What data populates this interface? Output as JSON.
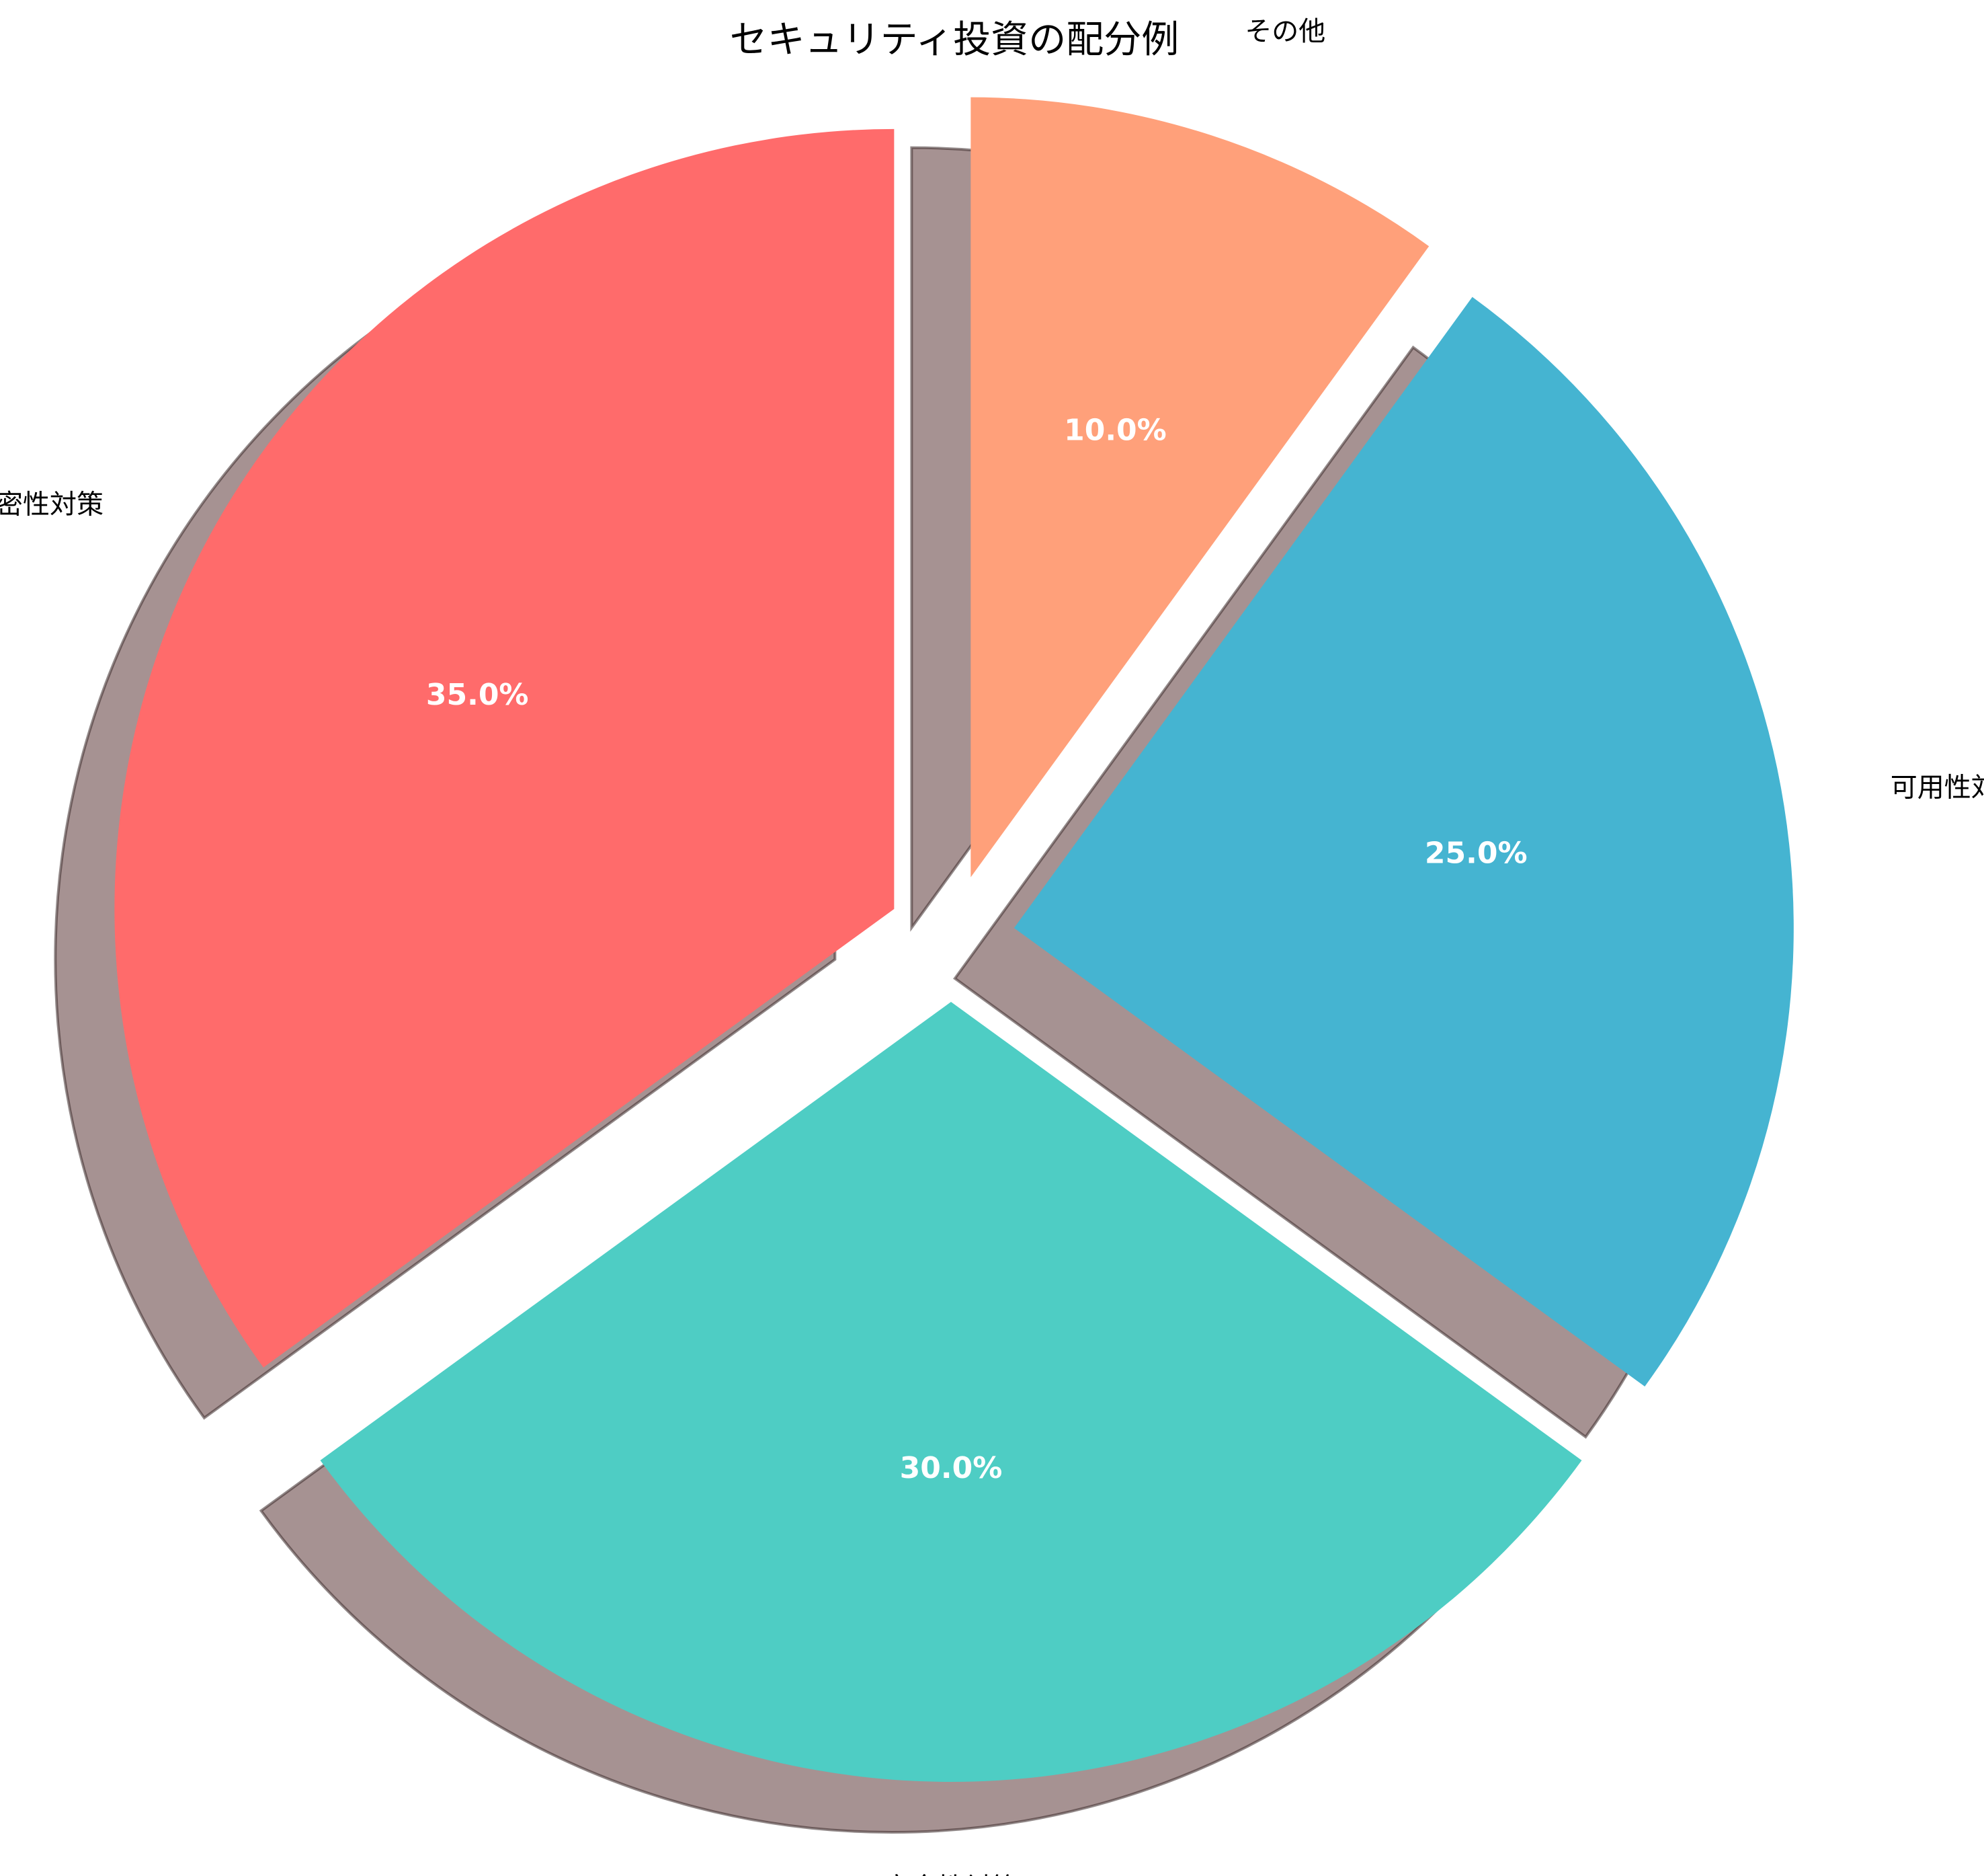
{
  "chart_data": {
    "type": "pie",
    "title": "セキュリティ投資の配分例",
    "slices": [
      {
        "label": "機密性対策",
        "value": 35.0,
        "pct_label": "35.0%",
        "color": "#FF6B6B"
      },
      {
        "label": "完全性対策",
        "value": 30.0,
        "pct_label": "30.0%",
        "color": "#4ECDC4"
      },
      {
        "label": "可用性対策",
        "value": 25.0,
        "pct_label": "25.0%",
        "color": "#45B4D1"
      },
      {
        "label": "その他",
        "value": 10.0,
        "pct_label": "10.0%",
        "color": "#FFA07A"
      }
    ],
    "start_angle": 90,
    "direction": "counterclockwise",
    "exploded": true,
    "shadow": true,
    "legend": "none"
  }
}
